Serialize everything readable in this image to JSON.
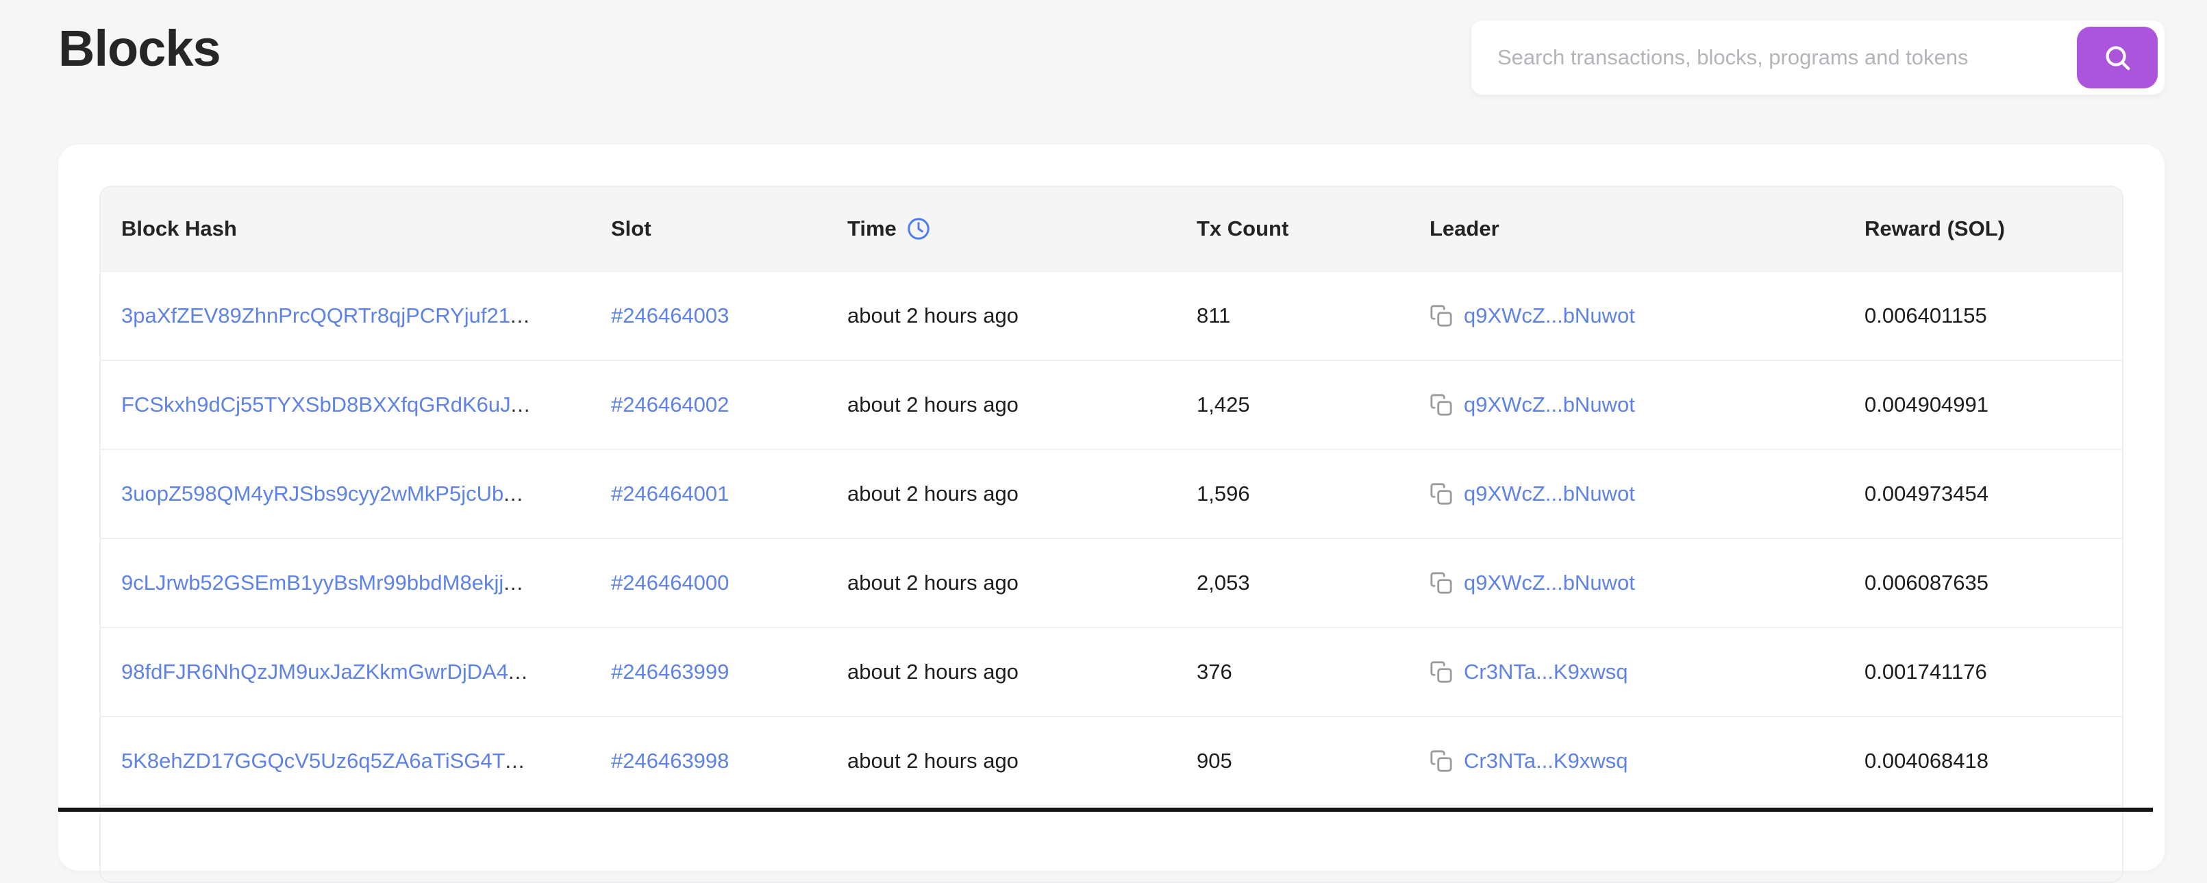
{
  "page": {
    "title": "Blocks"
  },
  "search": {
    "placeholder": "Search transactions, blocks, programs and tokens",
    "button_icon": "search-icon"
  },
  "colors": {
    "accent_purple": "#ab55dd",
    "link_blue": "#5e82e5",
    "clock_icon_blue": "#4c7cf0",
    "copy_icon_gray": "#9b9b9b",
    "page_background": "#f6f6f7"
  },
  "table": {
    "truncation": "...",
    "columns": [
      {
        "label": "Block Hash"
      },
      {
        "label": "Slot"
      },
      {
        "label": "Time",
        "icon": "clock-icon"
      },
      {
        "label": "Tx Count"
      },
      {
        "label": "Leader"
      },
      {
        "label": "Reward (SOL)"
      }
    ],
    "rows": [
      {
        "block_hash": "3paXfZEV89ZhnPrcQQRTr8qjPCRYjuf21",
        "slot": "#246464003",
        "time": "about 2 hours ago",
        "tx_count": "811",
        "leader": "q9XWcZ...bNuwot",
        "reward": "0.006401155"
      },
      {
        "block_hash": "FCSkxh9dCj55TYXSbD8BXXfqGRdK6uJ",
        "slot": "#246464002",
        "time": "about 2 hours ago",
        "tx_count": "1,425",
        "leader": "q9XWcZ...bNuwot",
        "reward": "0.004904991"
      },
      {
        "block_hash": "3uopZ598QM4yRJSbs9cyy2wMkP5jcUb",
        "slot": "#246464001",
        "time": "about 2 hours ago",
        "tx_count": "1,596",
        "leader": "q9XWcZ...bNuwot",
        "reward": "0.004973454"
      },
      {
        "block_hash": "9cLJrwb52GSEmB1yyBsMr99bbdM8ekjj",
        "slot": "#246464000",
        "time": "about 2 hours ago",
        "tx_count": "2,053",
        "leader": "q9XWcZ...bNuwot",
        "reward": "0.006087635"
      },
      {
        "block_hash": "98fdFJR6NhQzJM9uxJaZKkmGwrDjDA4",
        "slot": "#246463999",
        "time": "about 2 hours ago",
        "tx_count": "376",
        "leader": "Cr3NTa...K9xwsq",
        "reward": "0.001741176"
      },
      {
        "block_hash": "5K8ehZD17GGQcV5Uz6q5ZA6aTiSG4T",
        "slot": "#246463998",
        "time": "about 2 hours ago",
        "tx_count": "905",
        "leader": "Cr3NTa...K9xwsq",
        "reward": "0.004068418"
      }
    ]
  }
}
